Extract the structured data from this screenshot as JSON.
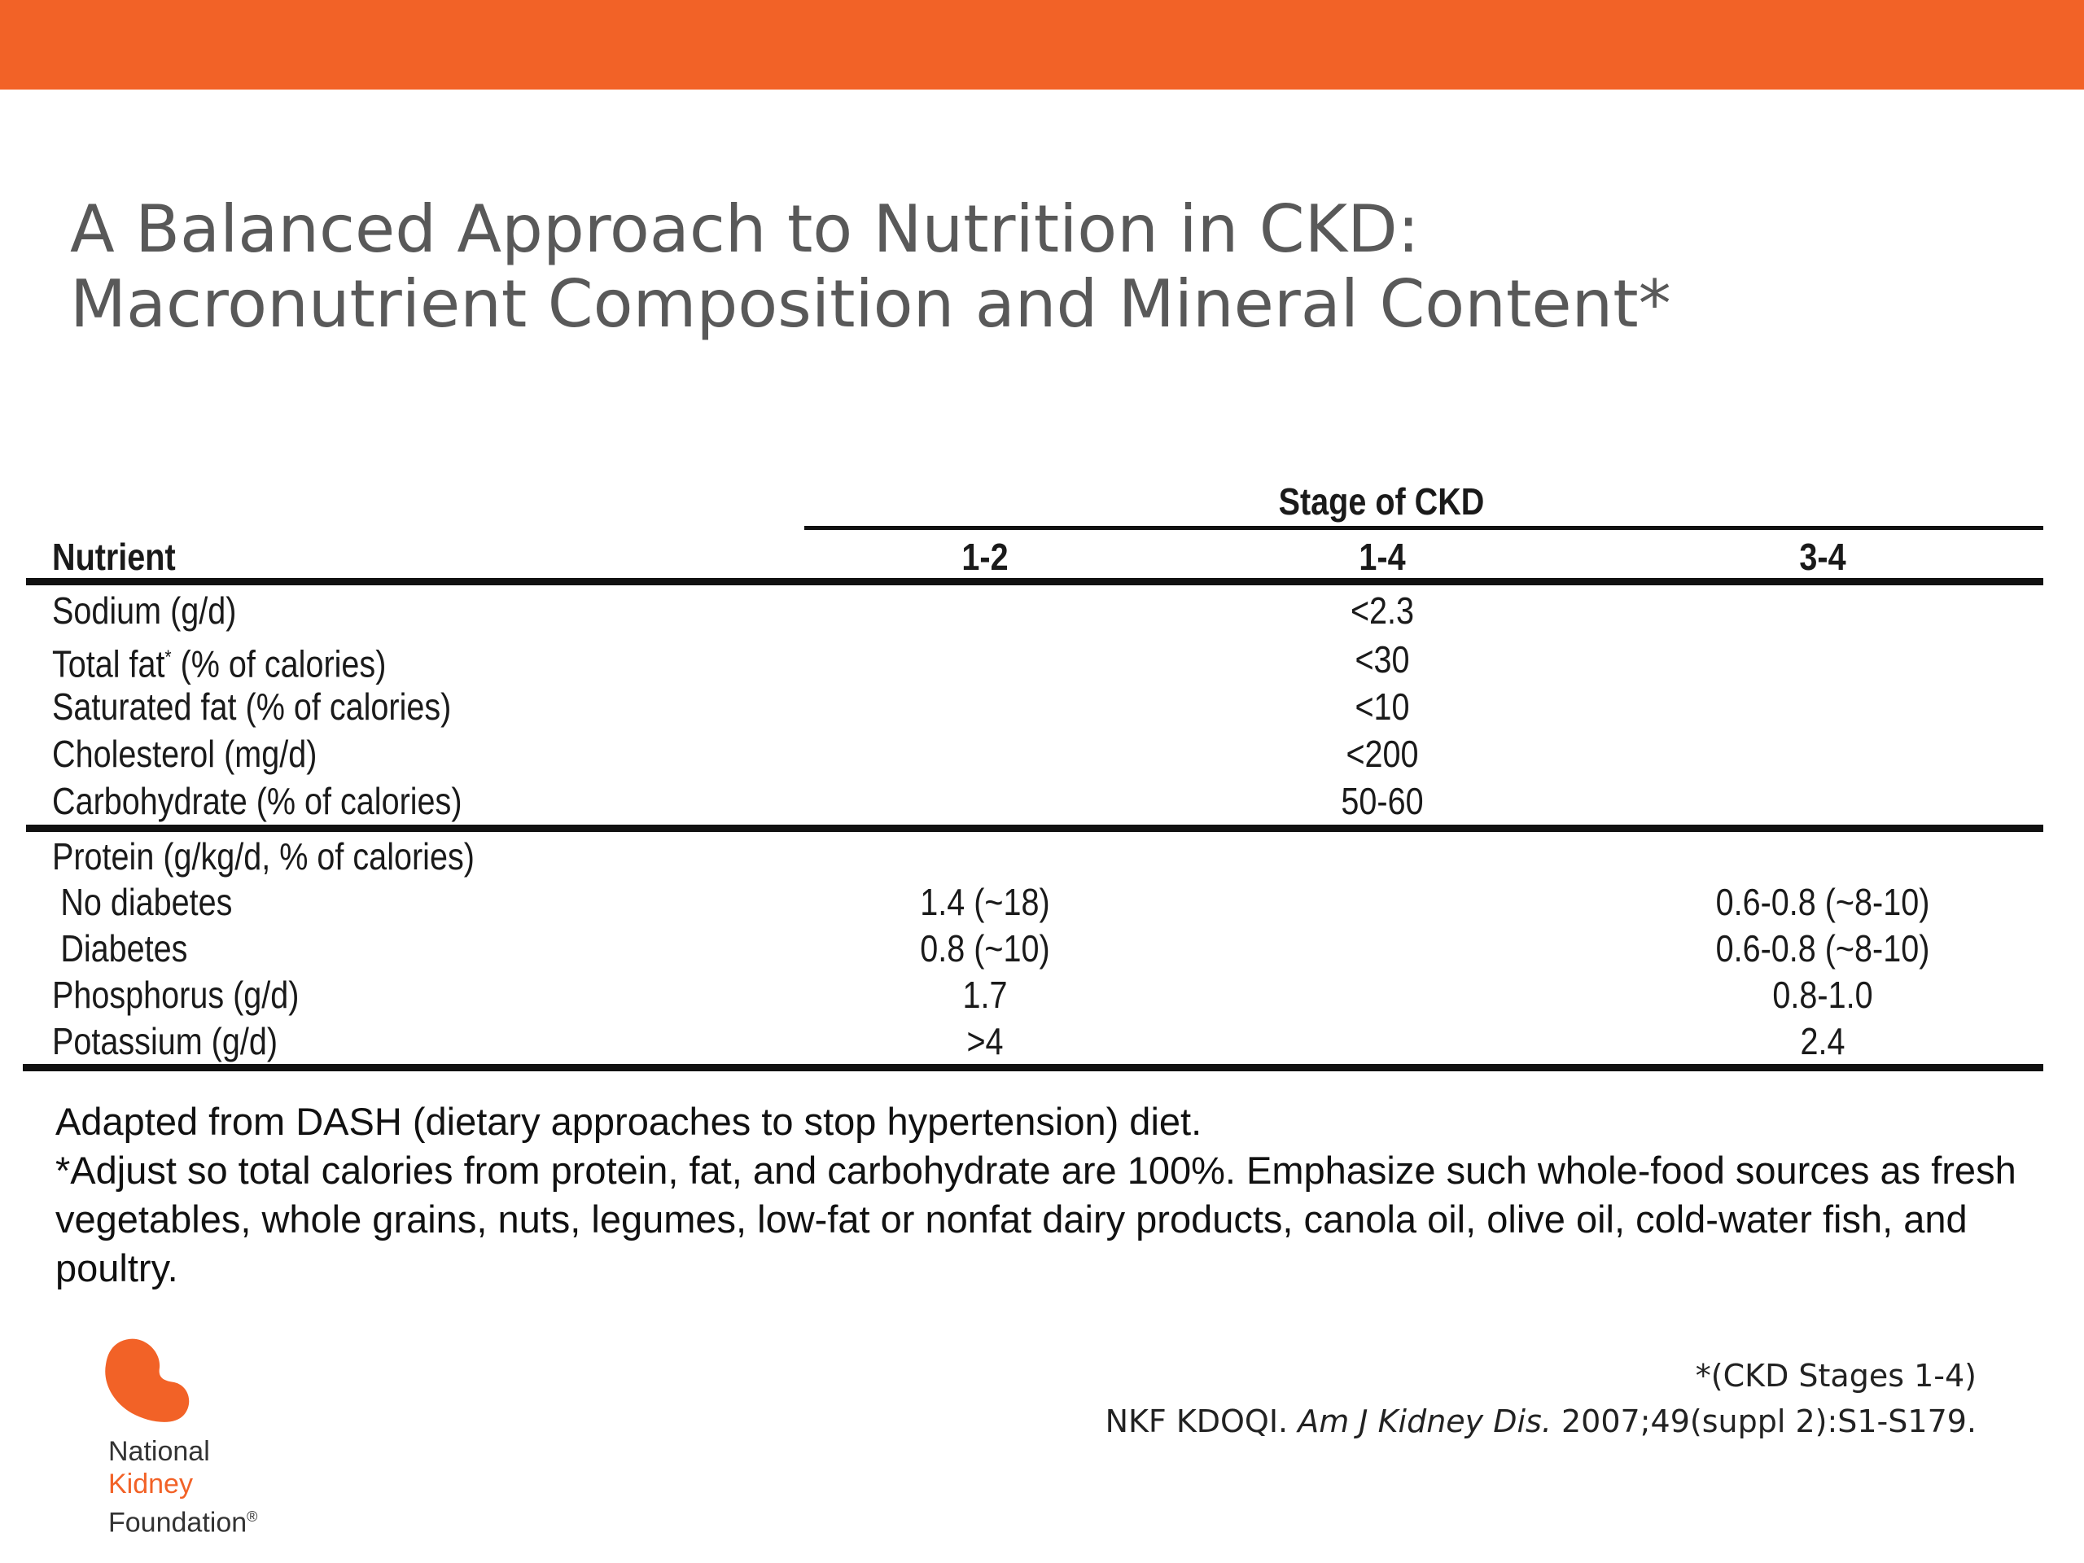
{
  "slide": {
    "title_line1": "A Balanced Approach to Nutrition in CKD:",
    "title_line2": "Macronutrient Composition and Mineral Content*",
    "accent_color": "#F26227"
  },
  "table": {
    "group_header": "Stage of CKD",
    "columns": [
      "Nutrient",
      "1-2",
      "1-4",
      "3-4"
    ],
    "rows_section1": [
      {
        "nutrient": "Sodium (g/d)",
        "v12": "",
        "v14": "<2.3",
        "v34": ""
      },
      {
        "nutrient": "Total fat",
        "sup": "*",
        "rest": " (% of calories)",
        "v12": "",
        "v14": "<30",
        "v34": ""
      },
      {
        "nutrient": "Saturated fat (% of calories)",
        "v12": "",
        "v14": "<10",
        "v34": ""
      },
      {
        "nutrient": "Cholesterol (mg/d)",
        "v12": "",
        "v14": "<200",
        "v34": ""
      },
      {
        "nutrient": "Carbohydrate (% of calories)",
        "v12": "",
        "v14": "50-60",
        "v34": ""
      }
    ],
    "rows_section2": [
      {
        "nutrient": "Protein (g/kg/d, % of calories)",
        "v12": "",
        "v14": "",
        "v34": ""
      },
      {
        "nutrient": " No diabetes",
        "v12": "1.4 (~18)",
        "v14": "",
        "v34": "0.6-0.8 (~8-10)"
      },
      {
        "nutrient": " Diabetes",
        "v12": "0.8 (~10)",
        "v14": "",
        "v34": "0.6-0.8 (~8-10)"
      },
      {
        "nutrient": "Phosphorus (g/d)",
        "v12": "1.7",
        "v14": "",
        "v34": "0.8-1.0"
      },
      {
        "nutrient": "Potassium (g/d)",
        "v12": ">4",
        "v14": "",
        "v34": "2.4"
      }
    ]
  },
  "notes": {
    "line1": "Adapted from DASH (dietary approaches to stop hypertension) diet.",
    "line2": "*Adjust so total calories from protein, fat, and carbohydrate are 100%. Emphasize such whole-food sources as fresh vegetables, whole grains, nuts, legumes, low-fat or nonfat dairy products, canola oil, olive oil, cold-water fish, and poultry."
  },
  "references": {
    "stages_note": "*(CKD Stages 1-4)",
    "citation_prefix": "NKF KDOQI. ",
    "citation_journal": "Am J Kidney Dis.",
    "citation_suffix": " 2007;49(suppl 2):S1-S179."
  },
  "logo": {
    "line1": "National",
    "line2": "Kidney",
    "line3": "Foundation",
    "mark": "®",
    "icon": "kidney-logo-icon"
  }
}
